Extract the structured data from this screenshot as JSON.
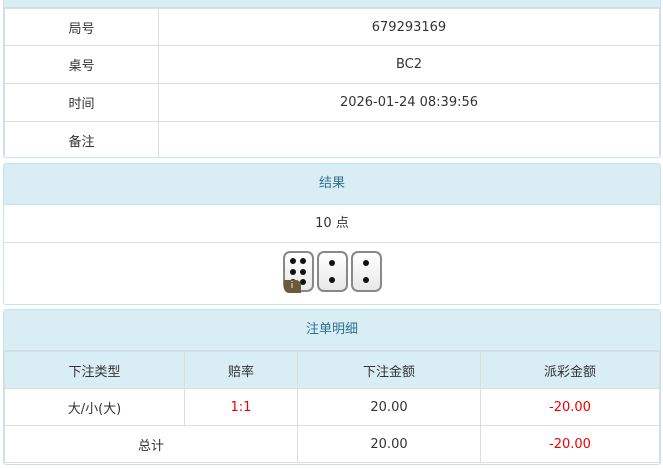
{
  "info": {
    "rows": [
      {
        "label": "局号",
        "value": "679293169"
      },
      {
        "label": "桌号",
        "value": "BC2"
      },
      {
        "label": "时间",
        "value": "2026-01-24 08:39:56"
      },
      {
        "label": "备注",
        "value": ""
      }
    ]
  },
  "result": {
    "title": "结果",
    "points": "10 点",
    "dice": [
      6,
      2,
      2
    ],
    "info_badge": "i"
  },
  "bets": {
    "title": "注单明细",
    "headers": [
      "下注类型",
      "赔率",
      "下注金额",
      "派彩金额"
    ],
    "rows": [
      {
        "type": "大/小(大)",
        "odds": "1:1",
        "amount": "20.00",
        "payout": "-20.00"
      }
    ],
    "total": {
      "label": "总计",
      "amount": "20.00",
      "payout": "-20.00"
    }
  }
}
